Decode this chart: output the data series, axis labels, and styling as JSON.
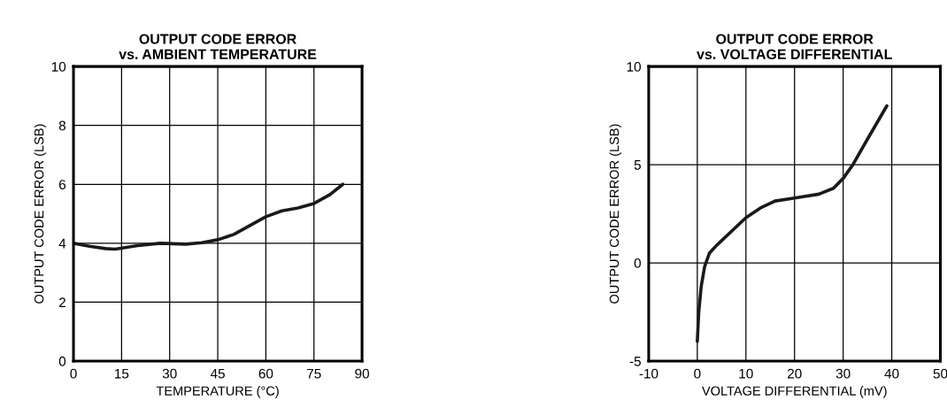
{
  "chart_data": [
    {
      "type": "line",
      "title": "OUTPUT CODE ERROR\nvs. AMBIENT TEMPERATURE",
      "xlabel": "TEMPERATURE (°C)",
      "ylabel": "OUTPUT CODE ERROR (LSB)",
      "x": [
        0,
        5,
        10,
        13,
        20,
        27,
        35,
        40,
        45,
        50,
        55,
        60,
        65,
        70,
        75,
        80,
        84
      ],
      "series": [
        {
          "color": "#1a1a1a",
          "values": [
            4.0,
            3.9,
            3.82,
            3.8,
            3.92,
            4.0,
            3.97,
            4.02,
            4.12,
            4.3,
            4.6,
            4.9,
            5.1,
            5.2,
            5.35,
            5.65,
            6.0
          ]
        }
      ],
      "xlim": [
        0,
        90
      ],
      "xticks": [
        0,
        15,
        30,
        45,
        60,
        75,
        90
      ],
      "ylim": [
        0,
        10
      ],
      "yticks": [
        0,
        2,
        4,
        6,
        8,
        10
      ],
      "grid": true,
      "legend": false
    },
    {
      "type": "line",
      "title": "OUTPUT CODE ERROR\nvs. VOLTAGE DIFFERENTIAL",
      "xlabel": "VOLTAGE DIFFERENTIAL (mV)",
      "ylabel": "OUTPUT CODE ERROR (LSB)",
      "x": [
        0,
        0.3,
        0.8,
        1.5,
        2.5,
        4,
        7,
        10,
        13,
        16,
        20,
        25,
        28,
        30,
        32,
        35,
        39
      ],
      "series": [
        {
          "color": "#1a1a1a",
          "values": [
            -4.0,
            -2.5,
            -1.2,
            -0.2,
            0.5,
            0.9,
            1.6,
            2.3,
            2.8,
            3.15,
            3.3,
            3.5,
            3.8,
            4.3,
            5.0,
            6.3,
            8.0
          ]
        }
      ],
      "xlim": [
        -10,
        50
      ],
      "xticks": [
        -10,
        0,
        10,
        20,
        30,
        40,
        50
      ],
      "ylim": [
        -5,
        10
      ],
      "yticks": [
        -5,
        0,
        5,
        10
      ],
      "grid": true,
      "legend": false
    }
  ]
}
